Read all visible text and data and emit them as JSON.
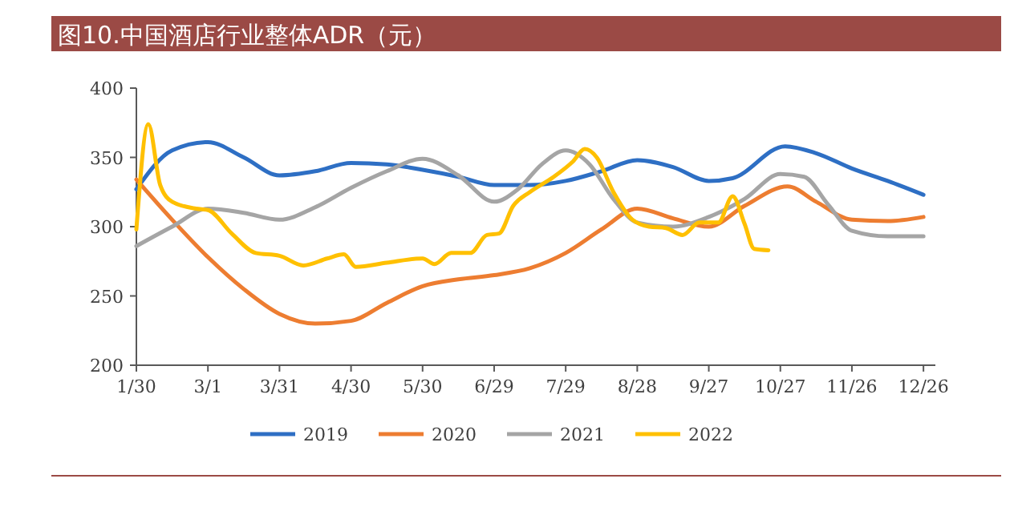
{
  "chart_data": {
    "type": "line",
    "title": "图10.中国酒店行业整体ADR（元）",
    "xlim": [
      "--01-30",
      "--12-31"
    ],
    "xticks": [
      {
        "value": "--01-30",
        "label": "1/30"
      },
      {
        "value": "--03-01",
        "label": "3/1"
      },
      {
        "value": "--03-31",
        "label": "3/31"
      },
      {
        "value": "--04-30",
        "label": "4/30"
      },
      {
        "value": "--05-30",
        "label": "5/30"
      },
      {
        "value": "--06-29",
        "label": "6/29"
      },
      {
        "value": "--07-29",
        "label": "7/29"
      },
      {
        "value": "--08-28",
        "label": "8/28"
      },
      {
        "value": "--09-27",
        "label": "9/27"
      },
      {
        "value": "--10-27",
        "label": "10/27"
      },
      {
        "value": "--11-26",
        "label": "11/26"
      },
      {
        "value": "--12-26",
        "label": "12/26"
      }
    ],
    "ylim": [
      200,
      400
    ],
    "yticks": [
      200,
      250,
      300,
      350,
      400
    ],
    "grid": false,
    "legend": "bottom",
    "marker": "none",
    "line_style": "solid",
    "series": [
      {
        "name": "2019",
        "color": "#2e6fc4",
        "x": [
          "--01-30",
          "--02-14",
          "--03-01",
          "--03-16",
          "--03-31",
          "--04-15",
          "--04-30",
          "--05-15",
          "--05-30",
          "--06-14",
          "--06-29",
          "--07-14",
          "--07-29",
          "--08-13",
          "--08-28",
          "--09-12",
          "--09-27",
          "--10-07",
          "--10-29",
          "--11-11",
          "--11-26",
          "--12-11",
          "--12-26"
        ],
        "values": [
          327,
          355,
          361,
          350,
          337,
          340,
          346,
          345,
          341,
          336,
          330,
          330,
          333,
          340,
          348,
          343,
          333,
          335,
          358,
          353,
          342,
          333,
          323
        ]
      },
      {
        "name": "2020",
        "color": "#ed7d31",
        "x": [
          "--01-30",
          "--02-14",
          "--03-01",
          "--03-16",
          "--03-31",
          "--04-15",
          "--04-30",
          "--05-15",
          "--05-30",
          "--06-14",
          "--06-29",
          "--07-14",
          "--07-29",
          "--08-13",
          "--08-28",
          "--09-12",
          "--09-27",
          "--10-12",
          "--10-30",
          "--11-11",
          "--11-26",
          "--12-11",
          "--12-26"
        ],
        "values": [
          334,
          305,
          278,
          255,
          237,
          230,
          232,
          245,
          257,
          262,
          265,
          270,
          281,
          298,
          313,
          306,
          300,
          315,
          329,
          318,
          305,
          304,
          307
        ]
      },
      {
        "name": "2021",
        "color": "#a5a5a5",
        "x": [
          "--01-30",
          "--02-14",
          "--03-01",
          "--03-16",
          "--03-31",
          "--04-15",
          "--04-30",
          "--05-15",
          "--05-30",
          "--06-14",
          "--06-29",
          "--07-09",
          "--07-19",
          "--07-29",
          "--08-08",
          "--08-18",
          "--08-28",
          "--09-12",
          "--09-27",
          "--10-12",
          "--10-27",
          "--11-06",
          "--11-16",
          "--11-26",
          "--12-11",
          "--12-26"
        ],
        "values": [
          286,
          300,
          313,
          310,
          305,
          314,
          328,
          340,
          349,
          337,
          318,
          327,
          345,
          355,
          345,
          320,
          303,
          300,
          307,
          320,
          338,
          336,
          316,
          297,
          293,
          293
        ]
      },
      {
        "name": "2022",
        "color": "#ffc000",
        "x": [
          "--01-30",
          "--02-04",
          "--02-09",
          "--02-14",
          "--02-24",
          "--03-01",
          "--03-11",
          "--03-21",
          "--03-31",
          "--04-10",
          "--04-20",
          "--04-27",
          "--05-02",
          "--05-15",
          "--05-30",
          "--06-04",
          "--06-11",
          "--06-19",
          "--06-26",
          "--07-01",
          "--07-07",
          "--07-14",
          "--07-24",
          "--08-01",
          "--08-06",
          "--08-11",
          "--08-18",
          "--08-26",
          "--09-02",
          "--09-09",
          "--09-16",
          "--09-23",
          "--10-01",
          "--10-07",
          "--10-12",
          "--10-16",
          "--10-22"
        ],
        "values": [
          298,
          374,
          330,
          318,
          313,
          312,
          295,
          281,
          279,
          272,
          277,
          280,
          271,
          274,
          277,
          273,
          281,
          281,
          294,
          295,
          315,
          325,
          336,
          347,
          356,
          350,
          325,
          305,
          300,
          299,
          294,
          303,
          303,
          322,
          302,
          284,
          283
        ]
      }
    ]
  }
}
